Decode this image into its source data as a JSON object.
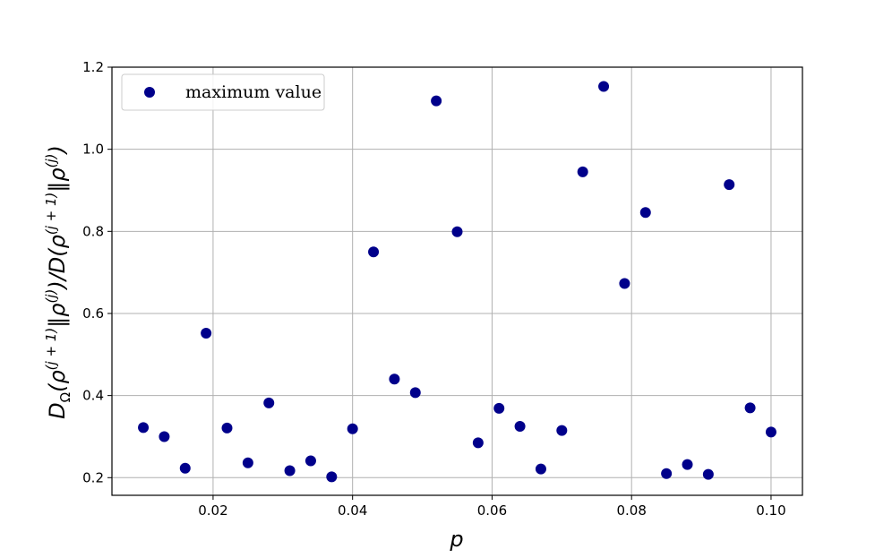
{
  "chart_data": {
    "type": "scatter",
    "xlabel": "p",
    "ylabel": "D_Ω(ρ^(j+1)‖ρ^(j))/D(ρ^(j+1)‖ρ^(j))",
    "ylabel_parts": {
      "d1": "D",
      "sub": "Ω",
      "open1": "(ρ",
      "sup1": "(j + 1)",
      "sep1": "‖ρ",
      "sup2": "(j)",
      "mid": ")/D(ρ",
      "sup3": "(j + 1)",
      "sep2": "‖ρ",
      "sup4": "(j)",
      "close": ")"
    },
    "xlim": [
      0.0055,
      0.1045
    ],
    "ylim": [
      0.157,
      1.2
    ],
    "xticks": [
      0.02,
      0.04,
      0.06,
      0.08,
      0.1
    ],
    "xtick_labels": [
      "0.02",
      "0.04",
      "0.06",
      "0.08",
      "0.10"
    ],
    "yticks": [
      0.2,
      0.4,
      0.6,
      0.8,
      1.0,
      1.2
    ],
    "ytick_labels": [
      "0.2",
      "0.4",
      "0.6",
      "0.8",
      "1.0",
      "1.2"
    ],
    "grid": true,
    "legend_position": "top-left",
    "series": [
      {
        "name": "maximum value",
        "color": "#00008b",
        "points": [
          {
            "x": 0.01,
            "y": 0.322
          },
          {
            "x": 0.013,
            "y": 0.3
          },
          {
            "x": 0.016,
            "y": 0.223
          },
          {
            "x": 0.019,
            "y": 0.552
          },
          {
            "x": 0.022,
            "y": 0.321
          },
          {
            "x": 0.025,
            "y": 0.236
          },
          {
            "x": 0.028,
            "y": 0.382
          },
          {
            "x": 0.031,
            "y": 0.217
          },
          {
            "x": 0.034,
            "y": 0.241
          },
          {
            "x": 0.037,
            "y": 0.202
          },
          {
            "x": 0.04,
            "y": 0.319
          },
          {
            "x": 0.043,
            "y": 0.75
          },
          {
            "x": 0.046,
            "y": 0.44
          },
          {
            "x": 0.049,
            "y": 0.407
          },
          {
            "x": 0.052,
            "y": 1.118
          },
          {
            "x": 0.055,
            "y": 0.799
          },
          {
            "x": 0.058,
            "y": 0.285
          },
          {
            "x": 0.061,
            "y": 0.369
          },
          {
            "x": 0.064,
            "y": 0.325
          },
          {
            "x": 0.067,
            "y": 0.221
          },
          {
            "x": 0.07,
            "y": 0.315
          },
          {
            "x": 0.073,
            "y": 0.945
          },
          {
            "x": 0.076,
            "y": 1.153
          },
          {
            "x": 0.079,
            "y": 0.673
          },
          {
            "x": 0.082,
            "y": 0.846
          },
          {
            "x": 0.085,
            "y": 0.21
          },
          {
            "x": 0.088,
            "y": 0.232
          },
          {
            "x": 0.091,
            "y": 0.208
          },
          {
            "x": 0.094,
            "y": 0.914
          },
          {
            "x": 0.097,
            "y": 0.37
          },
          {
            "x": 0.1,
            "y": 0.311
          }
        ]
      }
    ]
  }
}
